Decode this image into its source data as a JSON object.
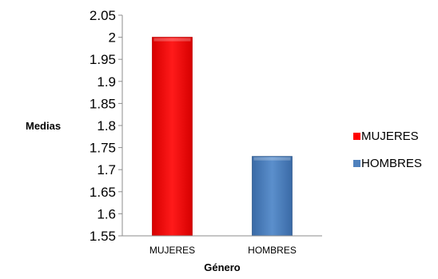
{
  "chart_data": {
    "type": "bar",
    "categories": [
      "MUJERES",
      "HOMBRES"
    ],
    "values": [
      2.0,
      1.73
    ],
    "xlabel": "Género",
    "ylabel": "Medias",
    "ylim": [
      1.55,
      2.05
    ],
    "ytick_step": 0.05,
    "yticks": [
      "1.55",
      "1.6",
      "1.65",
      "1.7",
      "1.75",
      "1.8",
      "1.85",
      "1.9",
      "1.95",
      "2",
      "2.05"
    ],
    "grid": false,
    "legend_position": "right",
    "legend": [
      "MUJERES",
      "HOMBRES"
    ],
    "colors": [
      "#ff0000",
      "#4f81bd"
    ]
  }
}
